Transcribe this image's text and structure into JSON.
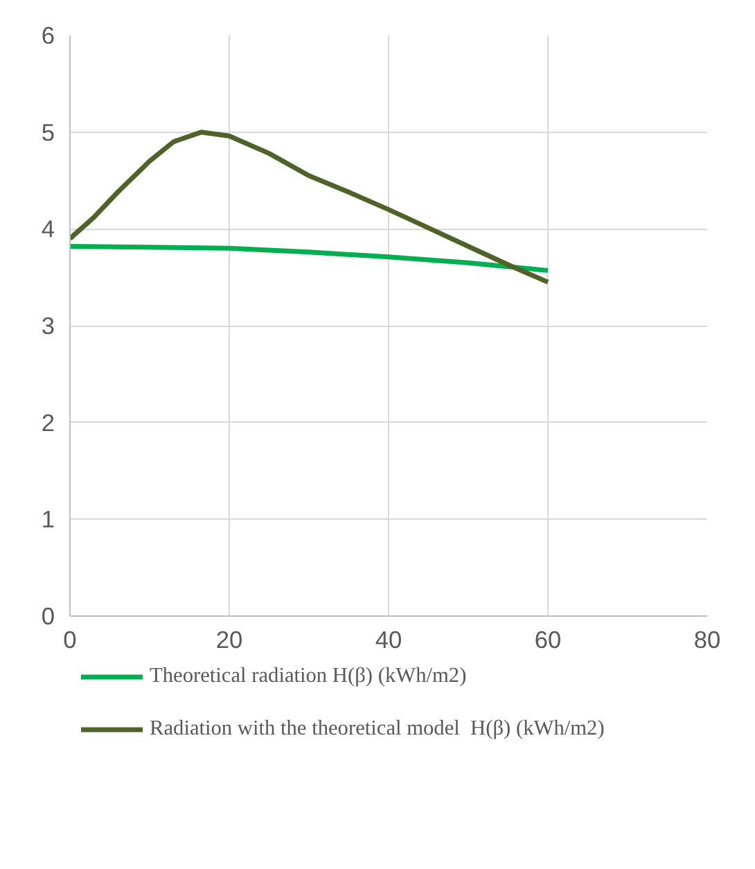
{
  "chart_data": {
    "type": "line",
    "xlim": [
      0,
      80
    ],
    "xticks": [
      0,
      20,
      40,
      60,
      80
    ],
    "ylim": [
      0,
      6
    ],
    "yticks": [
      0,
      1,
      2,
      3,
      4,
      5,
      6
    ],
    "grid": true,
    "legend": "bottom",
    "line_style": "solid",
    "marker": "none",
    "series": [
      {
        "name": "Theoretical radiation H(β) (kWh/m2)",
        "color": "#00b050",
        "x": [
          0,
          10,
          20,
          30,
          40,
          50,
          60
        ],
        "values": [
          3.82,
          3.81,
          3.8,
          3.76,
          3.71,
          3.65,
          3.57
        ]
      },
      {
        "name": "Radiation with the theoretical model  H(β) (kWh/m2)",
        "color": "#4f6228",
        "x": [
          0,
          3,
          6,
          10,
          13,
          16.5,
          20,
          25,
          30,
          35,
          40,
          45,
          50,
          55,
          60
        ],
        "values": [
          3.9,
          4.12,
          4.38,
          4.7,
          4.9,
          5.0,
          4.96,
          4.78,
          4.55,
          4.38,
          4.2,
          4.01,
          3.82,
          3.63,
          3.45
        ]
      }
    ]
  }
}
